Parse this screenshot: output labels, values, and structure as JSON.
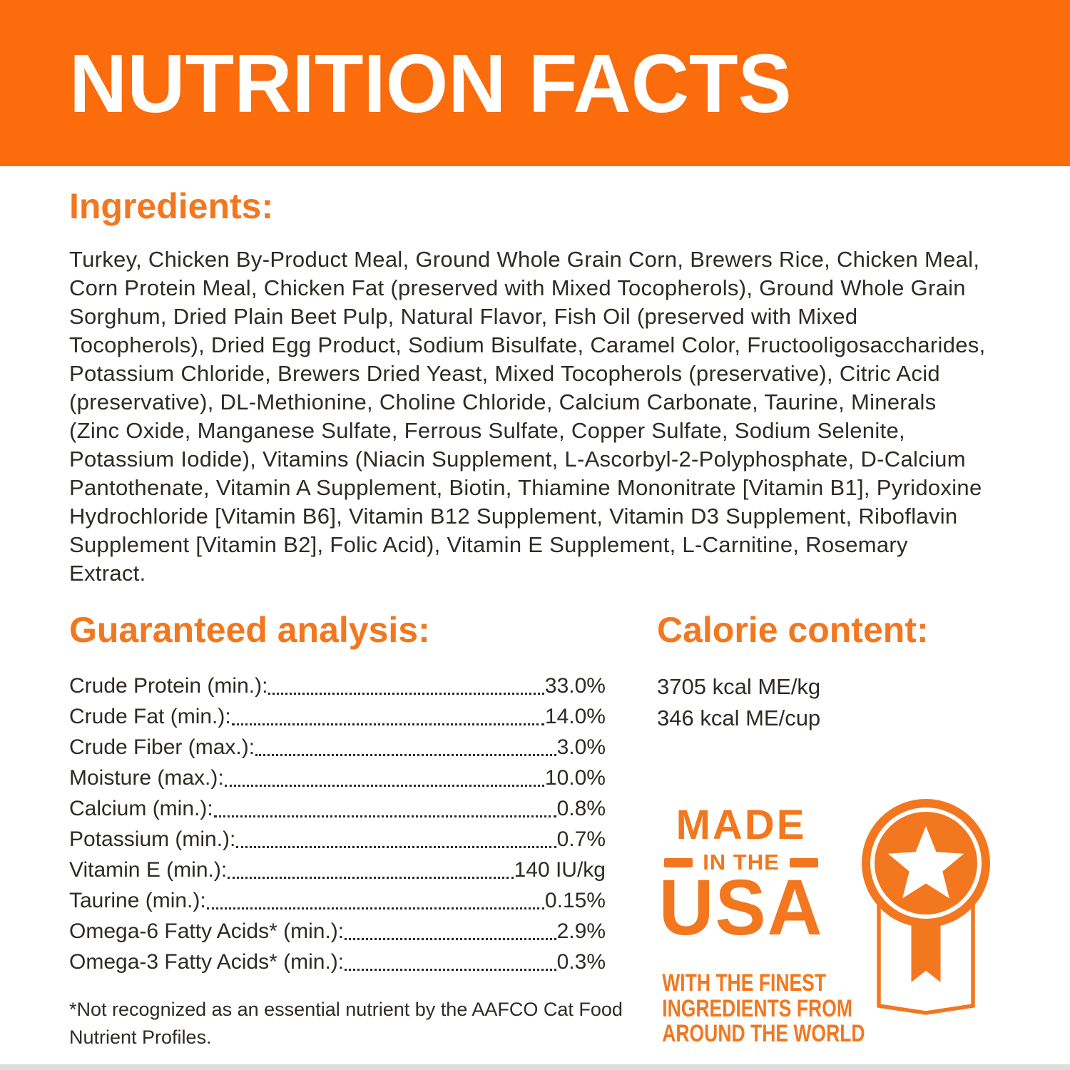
{
  "colors": {
    "banner_bg": "#fa6c0c",
    "accent_orange": "#f2771e",
    "body_text": "#2e2a26",
    "banner_text": "#ffffff"
  },
  "banner": {
    "title": "NUTRITION FACTS"
  },
  "ingredients": {
    "heading": "Ingredients:",
    "text": "Turkey, Chicken By-Product Meal, Ground Whole Grain Corn, Brewers Rice, Chicken Meal, Corn Protein Meal, Chicken Fat (preserved with Mixed Tocopherols), Ground Whole Grain Sorghum, Dried Plain Beet Pulp, Natural Flavor, Fish Oil (preserved with Mixed Tocopherols), Dried Egg Product, Sodium Bisulfate, Caramel Color, Fructooligosaccharides, Potassium Chloride, Brewers Dried Yeast, Mixed Tocopherols (preservative), Citric Acid (preservative), DL-Methionine, Choline Chloride, Calcium Carbonate, Taurine, Minerals (Zinc Oxide, Manganese Sulfate, Ferrous Sulfate, Copper Sulfate, Sodium Selenite, Potassium Iodide), Vitamins (Niacin Supplement, L-Ascorbyl-2-Polyphosphate, D-Calcium Pantothenate, Vitamin A Supplement, Biotin, Thiamine Mononitrate [Vitamin B1], Pyridoxine Hydrochloride [Vitamin B6], Vitamin B12 Supplement, Vitamin D3 Supplement, Riboflavin Supplement [Vitamin B2], Folic Acid), Vitamin E Supplement, L-Carnitine, Rosemary Extract."
  },
  "guaranteed_analysis": {
    "heading": "Guaranteed analysis:",
    "rows": [
      {
        "label": "Crude Protein (min.):",
        "value": "33.0%"
      },
      {
        "label": "Crude Fat (min.):",
        "value": "14.0%"
      },
      {
        "label": "Crude Fiber (max.):",
        "value": "3.0%"
      },
      {
        "label": "Moisture (max.):",
        "value": "10.0%"
      },
      {
        "label": "Calcium (min.):",
        "value": "0.8%"
      },
      {
        "label": "Potassium (min.):",
        "value": "0.7%"
      },
      {
        "label": "Vitamin E (min.):",
        "value": "140 IU/kg"
      },
      {
        "label": "Taurine (min.):",
        "value": "0.15%"
      },
      {
        "label": "Omega-6 Fatty Acids* (min.):",
        "value": "2.9%"
      },
      {
        "label": "Omega-3 Fatty Acids* (min.):",
        "value": "0.3%"
      }
    ]
  },
  "calorie_content": {
    "heading": "Calorie content:",
    "lines": [
      "3705 kcal ME/kg",
      "346 kcal ME/cup"
    ]
  },
  "made_in_usa": {
    "line1": "MADE",
    "line2": "IN THE",
    "line3": "USA",
    "tagline_lines": [
      "WITH THE FINEST",
      "INGREDIENTS FROM",
      "AROUND THE WORLD"
    ],
    "icon": "award-ribbon-star-icon"
  },
  "footnote": "*Not recognized as an essential nutrient by the AAFCO Cat Food Nutrient Profiles."
}
